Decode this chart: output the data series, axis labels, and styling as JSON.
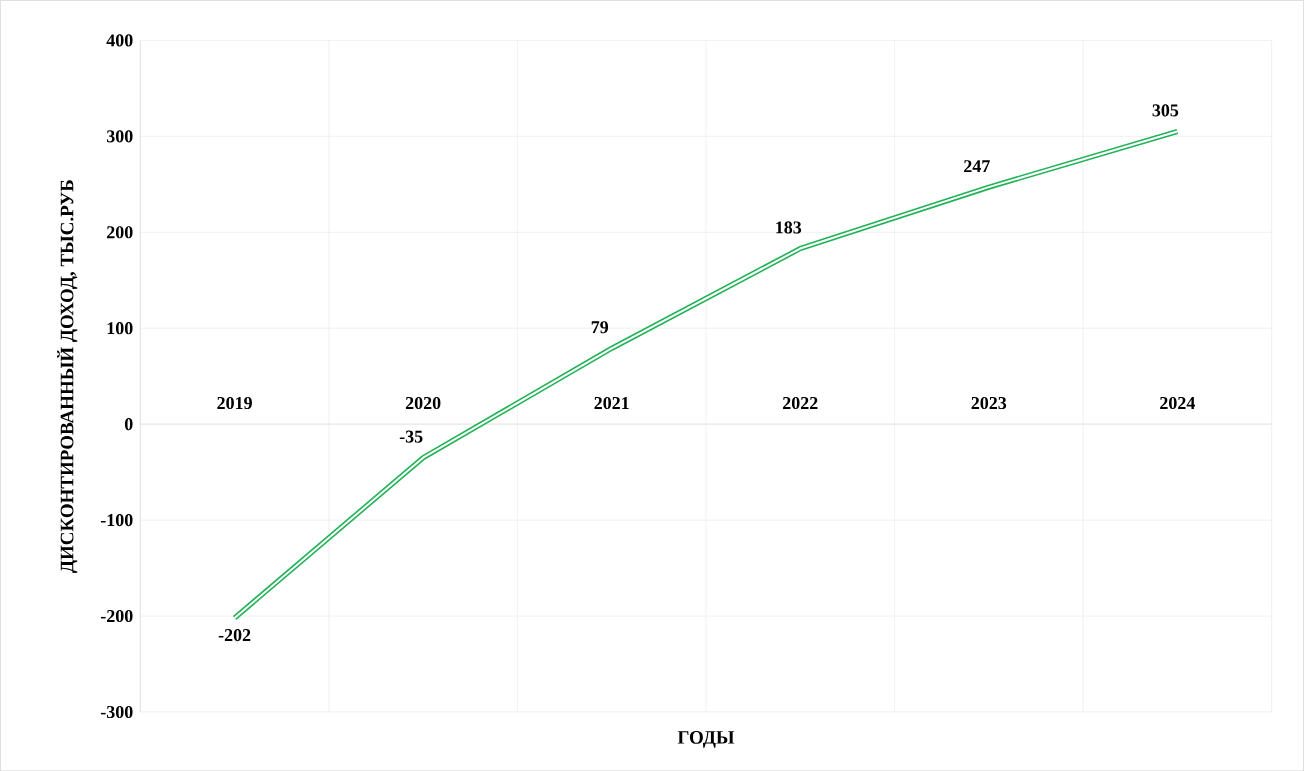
{
  "chart_data": {
    "type": "line",
    "xlabel": "ГОДЫ",
    "ylabel": "ДИСКОНТИРОВАННЫЙ ДОХОД, ТЫС.РУБ",
    "categories": [
      "2019",
      "2020",
      "2021",
      "2022",
      "2023",
      "2024"
    ],
    "series": [
      {
        "color": "#21b256",
        "values": [
          -202,
          -35,
          79,
          183,
          247,
          305
        ]
      }
    ],
    "ylim": [
      -300,
      400
    ],
    "yticks": [
      -300,
      -200,
      -100,
      0,
      100,
      200,
      300,
      400
    ],
    "grid": true,
    "data_labels": true
  }
}
